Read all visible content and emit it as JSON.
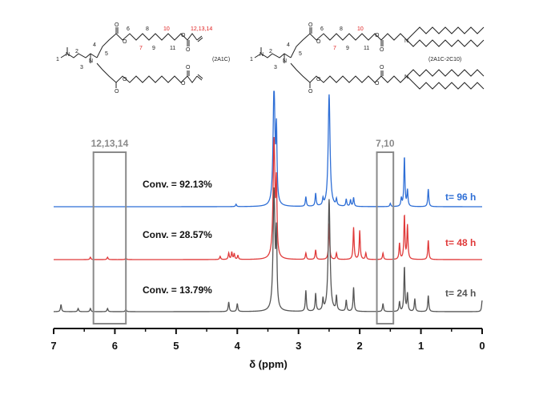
{
  "chart_data": {
    "type": "line",
    "xlabel": "δ (ppm)",
    "xlim": [
      7,
      0
    ],
    "x_ticks": [
      "7",
      "6",
      "5",
      "4",
      "3",
      "2",
      "1",
      "0"
    ],
    "series": [
      {
        "name": "t= 96 h",
        "color": "#2f6fd6",
        "conversion": "Conv. = 92.13%",
        "peaks": [
          [
            4.02,
            3
          ],
          [
            3.4,
            150
          ],
          [
            3.36,
            85
          ],
          [
            2.88,
            12
          ],
          [
            2.72,
            16
          ],
          [
            2.6,
            8
          ],
          [
            2.5,
            140
          ],
          [
            2.38,
            8
          ],
          [
            2.22,
            9
          ],
          [
            2.15,
            8
          ],
          [
            2.1,
            11
          ],
          [
            1.5,
            4
          ],
          [
            1.32,
            10
          ],
          [
            1.27,
            62
          ],
          [
            1.22,
            20
          ],
          [
            0.88,
            22
          ]
        ]
      },
      {
        "name": "t= 48 h",
        "color": "#e03a3a",
        "conversion": "Conv. = 28.57%",
        "peaks": [
          [
            6.4,
            3
          ],
          [
            6.12,
            3
          ],
          [
            5.82,
            2
          ],
          [
            4.28,
            4
          ],
          [
            4.14,
            8
          ],
          [
            4.09,
            9
          ],
          [
            4.05,
            7
          ],
          [
            3.99,
            5
          ],
          [
            3.4,
            148
          ],
          [
            3.36,
            84
          ],
          [
            2.88,
            8
          ],
          [
            2.72,
            12
          ],
          [
            2.5,
            45
          ],
          [
            2.38,
            8
          ],
          [
            2.1,
            40
          ],
          [
            2.0,
            36
          ],
          [
            1.9,
            8
          ],
          [
            1.62,
            8
          ],
          [
            1.35,
            20
          ],
          [
            1.27,
            55
          ],
          [
            1.22,
            42
          ],
          [
            0.88,
            24
          ]
        ]
      },
      {
        "name": "t= 24 h",
        "color": "#555555",
        "conversion": "Conv. = 13.79%",
        "peaks": [
          [
            6.88,
            9
          ],
          [
            6.6,
            4
          ],
          [
            6.4,
            4
          ],
          [
            6.12,
            4
          ],
          [
            5.82,
            3
          ],
          [
            4.14,
            12
          ],
          [
            4.0,
            10
          ],
          [
            3.4,
            150
          ],
          [
            3.36,
            86
          ],
          [
            2.88,
            26
          ],
          [
            2.72,
            22
          ],
          [
            2.6,
            14
          ],
          [
            2.5,
            140
          ],
          [
            2.38,
            18
          ],
          [
            2.22,
            14
          ],
          [
            2.1,
            30
          ],
          [
            1.62,
            10
          ],
          [
            1.35,
            12
          ],
          [
            1.27,
            56
          ],
          [
            1.22,
            22
          ],
          [
            1.1,
            16
          ],
          [
            0.88,
            20
          ],
          [
            0.0,
            14
          ]
        ]
      }
    ],
    "annotations": [
      {
        "label": "12,13,14",
        "x_range": [
          6.35,
          5.82
        ]
      },
      {
        "label": "7,10",
        "x_range": [
          1.72,
          1.45
        ]
      }
    ]
  },
  "molecules": {
    "left": {
      "name_tag": "(2A1C)",
      "atom_n": "N",
      "atom_o": "O",
      "position_labels": [
        "1",
        "2",
        "3",
        "4",
        "5",
        "6",
        "8",
        "9",
        "11"
      ],
      "red_labels": [
        "7",
        "10",
        "12,13,14"
      ]
    },
    "right": {
      "name_tag": "(2A1C-2C10)",
      "atom_n": "N",
      "atom_o": "O",
      "position_labels": [
        "1",
        "2",
        "3",
        "4",
        "5",
        "6",
        "8",
        "9",
        "11"
      ],
      "red_labels": [
        "7",
        "10"
      ]
    }
  }
}
